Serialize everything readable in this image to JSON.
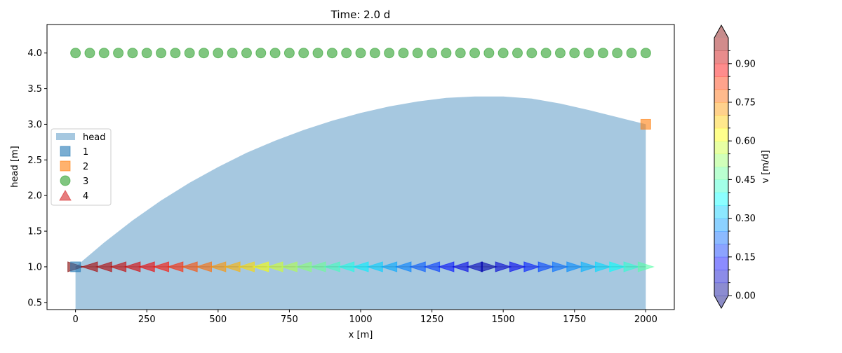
{
  "chart_data": {
    "type": "area",
    "title": "Time: 2.0 d",
    "xlabel": "x [m]",
    "ylabel": "head [m]",
    "xlim": [
      -100,
      2100
    ],
    "ylim": [
      0.4,
      4.4
    ],
    "xticks": [
      0,
      250,
      500,
      750,
      1000,
      1250,
      1500,
      1750,
      2000
    ],
    "yticks": [
      0.5,
      1.0,
      1.5,
      2.0,
      2.5,
      3.0,
      3.5,
      4.0
    ],
    "grid": false,
    "legend_placement": "center-left",
    "series": [
      {
        "name": "head",
        "kind": "area",
        "color": "#a6c8e0",
        "x": [
          0,
          100,
          200,
          300,
          400,
          500,
          600,
          700,
          800,
          900,
          1000,
          1100,
          1200,
          1300,
          1400,
          1500,
          1600,
          1700,
          1800,
          1900,
          2000
        ],
        "y": [
          1.0,
          1.34,
          1.65,
          1.93,
          2.18,
          2.4,
          2.6,
          2.77,
          2.92,
          3.05,
          3.16,
          3.25,
          3.32,
          3.37,
          3.39,
          3.39,
          3.36,
          3.29,
          3.2,
          3.1,
          3.0
        ]
      },
      {
        "name": "1",
        "kind": "marker",
        "marker": "square",
        "color": "#1f77b4",
        "x": [
          0
        ],
        "y": [
          1.0
        ]
      },
      {
        "name": "2",
        "kind": "marker",
        "marker": "square",
        "color": "#ff7f0e",
        "x": [
          2000
        ],
        "y": [
          3.0
        ]
      },
      {
        "name": "3",
        "kind": "marker",
        "marker": "circle",
        "color": "#2ca02c",
        "x": [
          0,
          50,
          100,
          150,
          200,
          250,
          300,
          350,
          400,
          450,
          500,
          550,
          600,
          650,
          700,
          750,
          800,
          850,
          900,
          950,
          1000,
          1050,
          1100,
          1150,
          1200,
          1250,
          1300,
          1350,
          1400,
          1450,
          1500,
          1550,
          1600,
          1650,
          1700,
          1750,
          1800,
          1850,
          1900,
          1950,
          2000
        ],
        "y": [
          4.0,
          4.0,
          4.0,
          4.0,
          4.0,
          4.0,
          4.0,
          4.0,
          4.0,
          4.0,
          4.0,
          4.0,
          4.0,
          4.0,
          4.0,
          4.0,
          4.0,
          4.0,
          4.0,
          4.0,
          4.0,
          4.0,
          4.0,
          4.0,
          4.0,
          4.0,
          4.0,
          4.0,
          4.0,
          4.0,
          4.0,
          4.0,
          4.0,
          4.0,
          4.0,
          4.0,
          4.0,
          4.0,
          4.0,
          4.0,
          4.0
        ]
      },
      {
        "name": "4",
        "kind": "legend-only",
        "marker": "triangle",
        "color": "#d62728"
      }
    ],
    "velocity_arrows": {
      "y": 1.0,
      "x": [
        0,
        50,
        100,
        150,
        200,
        250,
        300,
        350,
        400,
        450,
        500,
        550,
        600,
        650,
        700,
        750,
        800,
        850,
        900,
        950,
        1000,
        1050,
        1100,
        1150,
        1200,
        1250,
        1300,
        1350,
        1400,
        1450,
        1500,
        1550,
        1600,
        1650,
        1700,
        1750,
        1800,
        1850,
        1900,
        1950,
        2000
      ],
      "v": [
        1.0,
        0.96,
        0.95,
        0.93,
        0.91,
        0.89,
        0.86,
        0.84,
        0.8,
        0.77,
        0.73,
        0.7,
        0.66,
        0.62,
        0.58,
        0.55,
        0.51,
        0.48,
        0.44,
        0.4,
        0.36,
        0.33,
        0.29,
        0.25,
        0.21,
        0.18,
        0.14,
        0.1,
        0.06,
        0.04,
        0.08,
        0.11,
        0.15,
        0.19,
        0.23,
        0.26,
        0.3,
        0.34,
        0.38,
        0.42,
        0.46
      ],
      "dir": [
        1,
        -1,
        -1,
        -1,
        -1,
        -1,
        -1,
        -1,
        -1,
        -1,
        -1,
        -1,
        -1,
        -1,
        -1,
        -1,
        -1,
        -1,
        -1,
        -1,
        -1,
        -1,
        -1,
        -1,
        -1,
        -1,
        -1,
        -1,
        -1,
        1,
        1,
        1,
        1,
        1,
        1,
        1,
        1,
        1,
        1,
        1,
        1
      ]
    },
    "colorbar": {
      "label": "v [m/d]",
      "range": [
        0.0,
        1.0
      ],
      "ticks": [
        "0.00",
        "0.15",
        "0.30",
        "0.45",
        "0.60",
        "0.75",
        "0.90"
      ],
      "tick_values": [
        0.0,
        0.15,
        0.3,
        0.45,
        0.6,
        0.75,
        0.9
      ],
      "colormap": "jet"
    }
  }
}
